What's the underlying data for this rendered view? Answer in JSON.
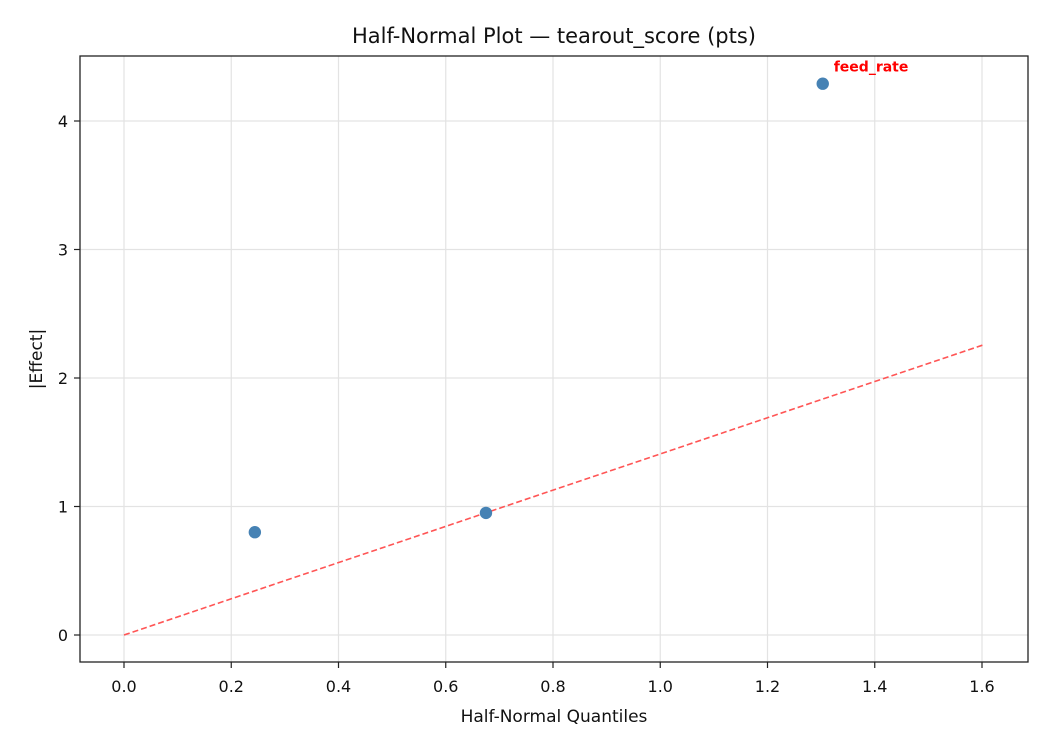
{
  "chart_data": {
    "type": "scatter",
    "title": "Half-Normal Plot — tearout_score (pts)",
    "xlabel": "Half-Normal Quantiles",
    "ylabel": "|Effect|",
    "xlim": [
      -0.08,
      1.69
    ],
    "ylim": [
      -0.21,
      4.5
    ],
    "xticks": [
      0.0,
      0.2,
      0.4,
      0.6,
      0.8,
      1.0,
      1.2,
      1.4,
      1.6
    ],
    "xtick_labels": [
      "0.0",
      "0.2",
      "0.4",
      "0.6",
      "0.8",
      "1.0",
      "1.2",
      "1.4",
      "1.6"
    ],
    "yticks": [
      0,
      1,
      2,
      3,
      4
    ],
    "ytick_labels": [
      "0",
      "1",
      "2",
      "3",
      "4"
    ],
    "grid": true,
    "series": [
      {
        "name": "effects",
        "color": "#4682b4",
        "points": [
          {
            "x": 0.244,
            "y": 0.8,
            "label": ""
          },
          {
            "x": 0.675,
            "y": 0.95,
            "label": ""
          },
          {
            "x": 1.303,
            "y": 4.29,
            "label": "feed_rate"
          }
        ]
      }
    ],
    "reference_line": {
      "style": "dashed",
      "color": "#ff5555",
      "x": [
        0.0,
        1.604
      ],
      "y": [
        0.0,
        2.26
      ]
    },
    "annotations": [
      {
        "text": "feed_rate",
        "x": 1.303,
        "y": 4.29,
        "color": "#ff0000",
        "bold": true
      }
    ]
  }
}
